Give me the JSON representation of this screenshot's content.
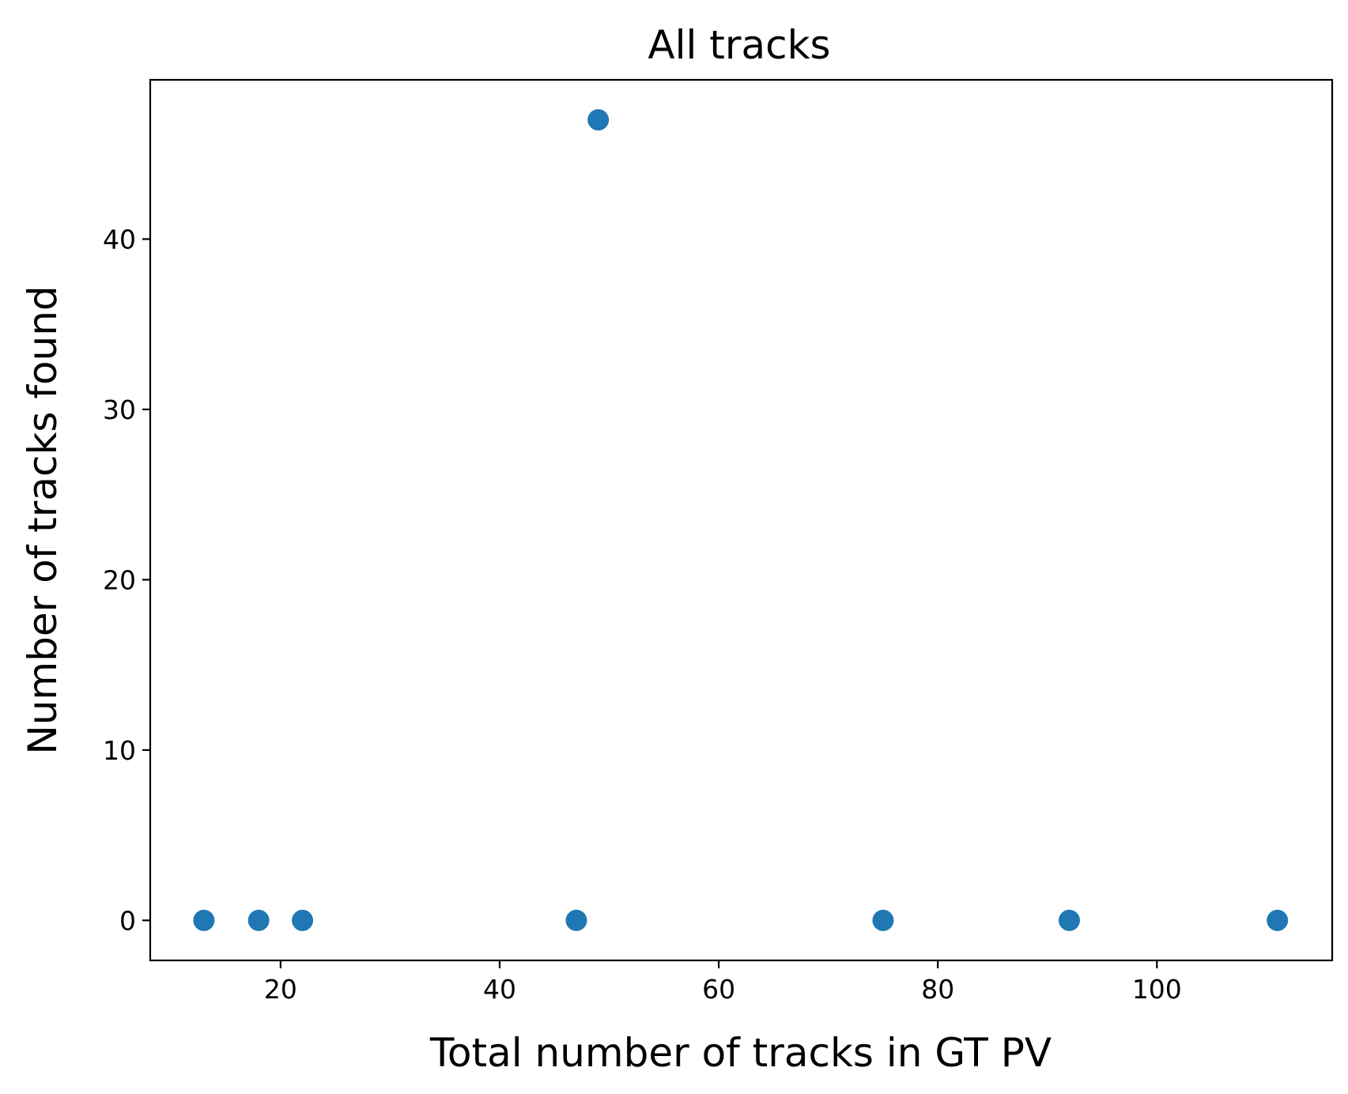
{
  "chart_data": {
    "type": "scatter",
    "title": "All tracks",
    "xlabel": "Total number of tracks in GT PV",
    "ylabel": "Number of tracks found",
    "xlim": [
      8.1,
      116.0
    ],
    "ylim": [
      -2.35,
      49.35
    ],
    "xticks": [
      20,
      40,
      60,
      80,
      100
    ],
    "yticks": [
      0,
      10,
      20,
      30,
      40
    ],
    "grid": false,
    "legend": "none",
    "marker_color": "#1f77b4",
    "series": [
      {
        "x": [
          13,
          18,
          22,
          47,
          49,
          75,
          92,
          111
        ],
        "y": [
          0,
          0,
          0,
          0,
          47,
          0,
          0,
          0
        ]
      }
    ]
  }
}
